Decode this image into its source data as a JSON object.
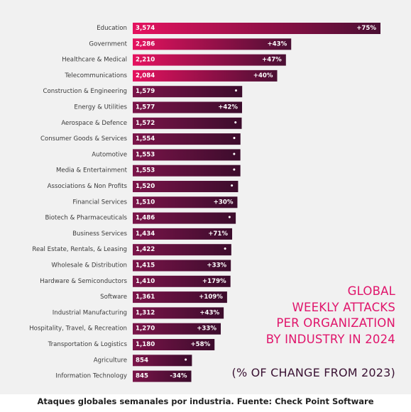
{
  "chart_data": {
    "type": "bar",
    "orientation": "horizontal",
    "title_lines": [
      "GLOBAL",
      "WEEKLY ATTACKS",
      "PER ORGANIZATION",
      "BY INDUSTRY IN 2024"
    ],
    "subtitle": "(% OF CHANGE FROM 2023)",
    "categories": [
      "Education",
      "Government",
      "Healthcare & Medical",
      "Telecommunications",
      "Construction & Engineering",
      "Energy & Utilities",
      "Aerospace & Defence",
      "Consumer Goods & Services",
      "Automotive",
      "Media & Entertainment",
      "Associations & Non Profits",
      "Financial Services",
      "Biotech & Pharmaceuticals",
      "Business Services",
      "Real Estate, Rentals, & Leasing",
      "Wholesale & Distribution",
      "Hardware & Semiconductors",
      "Software",
      "Industrial Manufacturing",
      "Hospitality, Travel, & Recreation",
      "Transportation & Logistics",
      "Agriculture",
      "Information Technology"
    ],
    "values": [
      3574,
      2286,
      2210,
      2084,
      1579,
      1577,
      1572,
      1554,
      1553,
      1553,
      1520,
      1510,
      1486,
      1434,
      1422,
      1415,
      1410,
      1361,
      1312,
      1270,
      1180,
      854,
      845
    ],
    "value_labels": [
      "3,574",
      "2,286",
      "2,210",
      "2,084",
      "1,579",
      "1,577",
      "1,572",
      "1,554",
      "1,553",
      "1,553",
      "1,520",
      "1,510",
      "1,486",
      "1,434",
      "1,422",
      "1,415",
      "1,410",
      "1,361",
      "1,312",
      "1,270",
      "1,180",
      "854",
      "845"
    ],
    "change_labels": [
      "+75%",
      "+43%",
      "+47%",
      "+40%",
      "•",
      "+42%",
      "•",
      "•",
      "•",
      "•",
      "•",
      "+30%",
      "•",
      "+71%",
      "•",
      "+33%",
      "+179%",
      "+109%",
      "+43%",
      "+33%",
      "+58%",
      "•",
      "-34%"
    ],
    "highlight_count": 4,
    "colors": {
      "highlight_start": "#e5125f",
      "highlight_end": "#4a0f33",
      "bar_start": "#7a1449",
      "bar_end": "#3c0c2c",
      "title": "#e0156b",
      "subtitle": "#3a1233"
    }
  },
  "caption": "Ataques globales semanales por industria. Fuente: Check Point Software"
}
